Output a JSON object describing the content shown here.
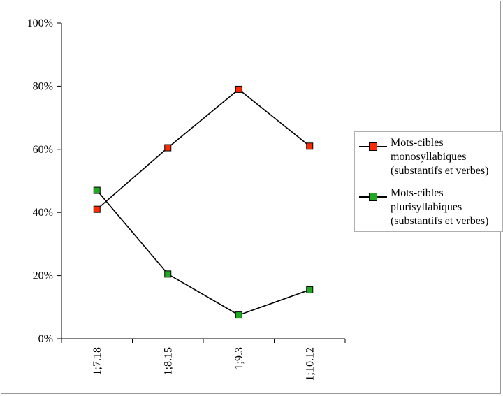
{
  "chart_data": {
    "type": "line",
    "categories": [
      "1;7.18",
      "1;8.15",
      "1;9.3",
      "1;10.12"
    ],
    "ylim": [
      0,
      100
    ],
    "y_ticks": [
      "0%",
      "20%",
      "40%",
      "60%",
      "80%",
      "100%"
    ],
    "y_tick_values": [
      0,
      20,
      40,
      60,
      80,
      100
    ],
    "grid": false,
    "legend_position": "right",
    "series": [
      {
        "name": "Mots-cibles monosyllabiques (substantifs et verbes)",
        "name_lines": [
          "Mots-cibles",
          "monosyllabiques",
          "(substantifs et verbes)"
        ],
        "color": "#ff2a00",
        "values": [
          41,
          60.5,
          79,
          61
        ]
      },
      {
        "name": "Mots-cibles plurisyllabiques (substantifs et verbes)",
        "name_lines": [
          "Mots-cibles",
          "plurisyllabiques",
          "(substantifs et verbes)"
        ],
        "color": "#1faa1f",
        "values": [
          47,
          20.5,
          7.5,
          15.5
        ]
      }
    ]
  }
}
